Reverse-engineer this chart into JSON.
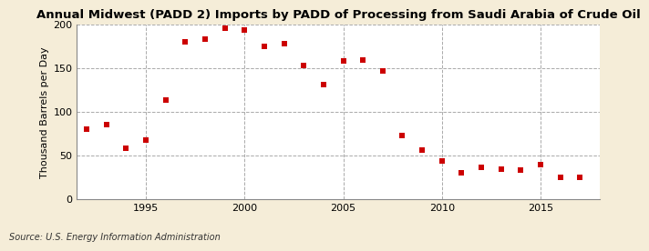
{
  "title": "Annual Midwest (PADD 2) Imports by PADD of Processing from Saudi Arabia of Crude Oil",
  "ylabel": "Thousand Barrels per Day",
  "source": "Source: U.S. Energy Information Administration",
  "figure_bg": "#f5edd8",
  "plot_bg": "#ffffff",
  "marker_color": "#cc0000",
  "years": [
    1992,
    1993,
    1994,
    1995,
    1996,
    1997,
    1998,
    1999,
    2000,
    2001,
    2002,
    2003,
    2004,
    2005,
    2006,
    2007,
    2008,
    2009,
    2010,
    2011,
    2012,
    2013,
    2014,
    2015,
    2016,
    2017
  ],
  "values": [
    80,
    85,
    58,
    68,
    113,
    180,
    183,
    196,
    193,
    175,
    178,
    153,
    131,
    158,
    159,
    147,
    73,
    56,
    44,
    30,
    37,
    35,
    34,
    40,
    25,
    25
  ],
  "ylim": [
    0,
    200
  ],
  "yticks": [
    0,
    50,
    100,
    150,
    200
  ],
  "xlim": [
    1991.5,
    2018
  ],
  "xticks": [
    1995,
    2000,
    2005,
    2010,
    2015
  ],
  "grid_color": "#aaaaaa",
  "title_fontsize": 9.5,
  "label_fontsize": 8,
  "tick_fontsize": 8,
  "source_fontsize": 7
}
